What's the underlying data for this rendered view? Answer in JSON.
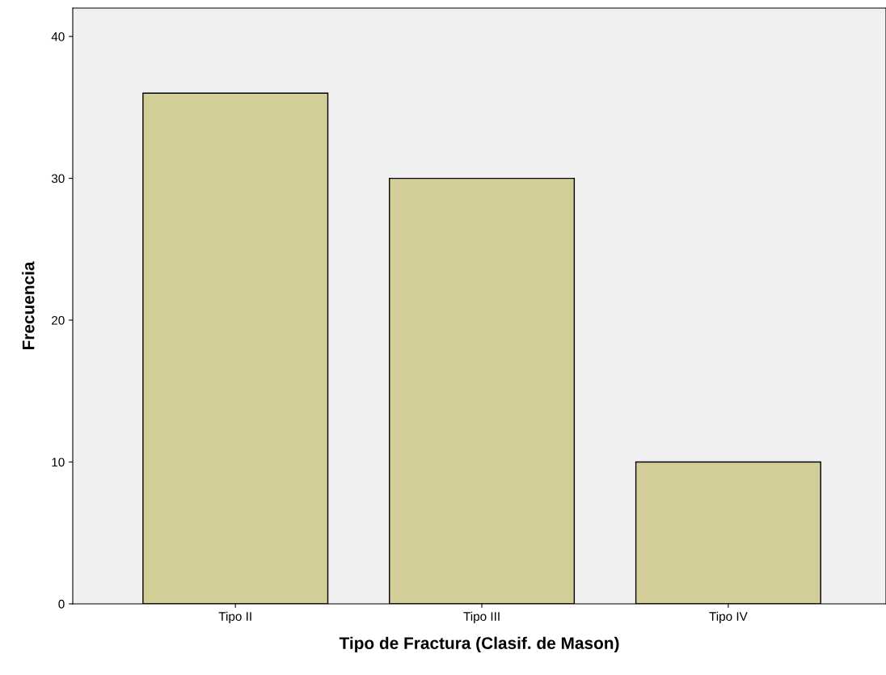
{
  "chart_data": {
    "type": "bar",
    "xlabel": "Tipo de Fractura (Clasif. de Mason)",
    "ylabel": "Frecuencia",
    "categories": [
      "Tipo II",
      "Tipo III",
      "Tipo IV"
    ],
    "values": [
      36,
      30,
      10
    ],
    "color": "#d3ce98",
    "ylim": [
      0,
      42
    ],
    "yticks": [
      0,
      10,
      20,
      30,
      40
    ],
    "grid": false
  }
}
